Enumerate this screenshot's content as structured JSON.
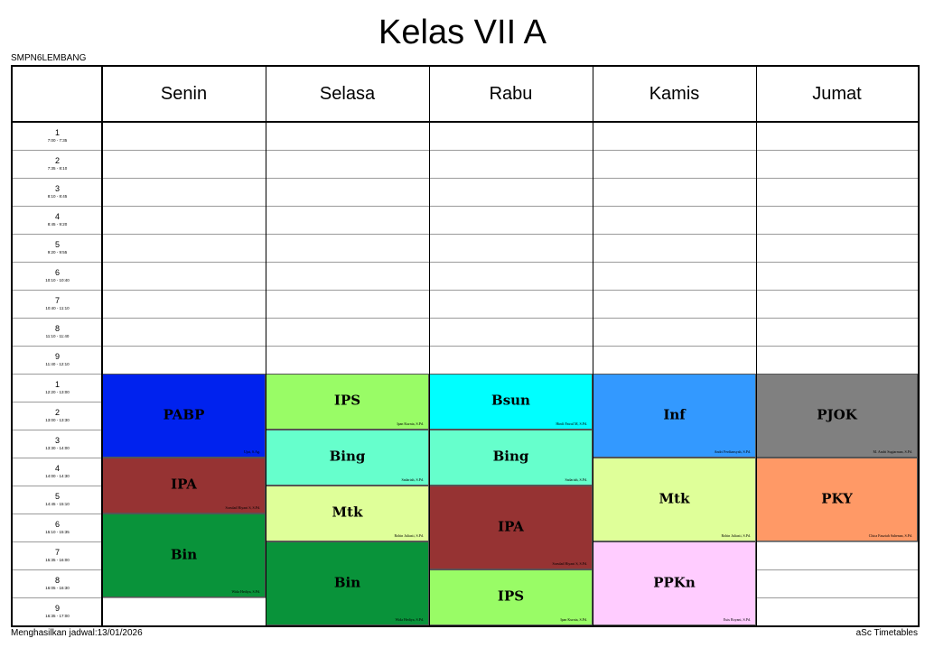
{
  "title": "Kelas VII A",
  "school": "SMPN6LEMBANG",
  "footer": {
    "generated": "Menghasilkan jadwal:13/01/2026",
    "brand": "aSc Timetables"
  },
  "days": [
    "Senin",
    "Selasa",
    "Rabu",
    "Kamis",
    "Jumat"
  ],
  "periods": [
    {
      "num": "1",
      "time": "7:00 - 7:35"
    },
    {
      "num": "2",
      "time": "7:35 - 8:10"
    },
    {
      "num": "3",
      "time": "8:10 - 8:45"
    },
    {
      "num": "4",
      "time": "8:45 - 9:20"
    },
    {
      "num": "5",
      "time": "9:20 - 9:55"
    },
    {
      "num": "6",
      "time": "10:10 - 10:40"
    },
    {
      "num": "7",
      "time": "10:40 - 11:10"
    },
    {
      "num": "8",
      "time": "11:10 - 11:40"
    },
    {
      "num": "9",
      "time": "11:40 - 12:10"
    },
    {
      "num": "1",
      "time": "12:20 - 13:00"
    },
    {
      "num": "2",
      "time": "13:00 - 13:30"
    },
    {
      "num": "3",
      "time": "13:30 - 14:00"
    },
    {
      "num": "4",
      "time": "14:00 - 14:30"
    },
    {
      "num": "5",
      "time": "14:45 - 15:10"
    },
    {
      "num": "6",
      "time": "15:10 - 15:35"
    },
    {
      "num": "7",
      "time": "15:35 - 16:00"
    },
    {
      "num": "8",
      "time": "16:05 - 16:30"
    },
    {
      "num": "9",
      "time": "16:35 - 17:00"
    }
  ],
  "lessons": [
    {
      "day": 0,
      "start": 9,
      "span": 3,
      "subject": "PABP",
      "teacher": "Ujat, S.Ag.",
      "color": "#0022ee"
    },
    {
      "day": 0,
      "start": 12,
      "span": 2,
      "subject": "IPA",
      "teacher": "Soeulad Hiyani S, S.Pd.",
      "color": "#963333"
    },
    {
      "day": 0,
      "start": 14,
      "span": 3,
      "subject": "Bin",
      "teacher": "Wida Hediya, S.Pd.",
      "color": "#09933a"
    },
    {
      "day": 1,
      "start": 9,
      "span": 2,
      "subject": "IPS",
      "teacher": "Ipan Kurnia, S.Pd.",
      "color": "#99fc66"
    },
    {
      "day": 1,
      "start": 11,
      "span": 2,
      "subject": "Bing",
      "teacher": "Sadariah, S.Pd.",
      "color": "#66ffcc"
    },
    {
      "day": 1,
      "start": 13,
      "span": 2,
      "subject": "Mtk",
      "teacher": "Rohin Juliasti, S.Pd.",
      "color": "#dfff99"
    },
    {
      "day": 1,
      "start": 15,
      "span": 3,
      "subject": "Bin",
      "teacher": "Wida Hediya, S.Pd.",
      "color": "#09933a"
    },
    {
      "day": 2,
      "start": 9,
      "span": 2,
      "subject": "Bsun",
      "teacher": "Hindi Fatrul M, S.Pd.",
      "color": "#00ffff"
    },
    {
      "day": 2,
      "start": 11,
      "span": 2,
      "subject": "Bing",
      "teacher": "Sadariah, S.Pd.",
      "color": "#66ffcc"
    },
    {
      "day": 2,
      "start": 13,
      "span": 3,
      "subject": "IPA",
      "teacher": "Soeulad Hiyani S, S.Pd.",
      "color": "#963333"
    },
    {
      "day": 2,
      "start": 16,
      "span": 2,
      "subject": "IPS",
      "teacher": "Ipan Kurnia, S.Pd.",
      "color": "#99fc66"
    },
    {
      "day": 3,
      "start": 9,
      "span": 3,
      "subject": "Inf",
      "teacher": "Andri Ferdiansyah, S.Pd.",
      "color": "#3399ff"
    },
    {
      "day": 3,
      "start": 12,
      "span": 3,
      "subject": "Mtk",
      "teacher": "Rohin Juliasti, S.Pd.",
      "color": "#dfff99"
    },
    {
      "day": 3,
      "start": 15,
      "span": 3,
      "subject": "PPKn",
      "teacher": "Euis Royani, S.Pd.",
      "color": "#ffccff"
    },
    {
      "day": 4,
      "start": 9,
      "span": 3,
      "subject": "PJOK",
      "teacher": "M. Andri Sugiarman, S.Pd.",
      "color": "#808080"
    },
    {
      "day": 4,
      "start": 12,
      "span": 3,
      "subject": "PKY",
      "teacher": "Chica Fauziah Suhenan, S.Pd.",
      "color": "#ff9966"
    }
  ]
}
